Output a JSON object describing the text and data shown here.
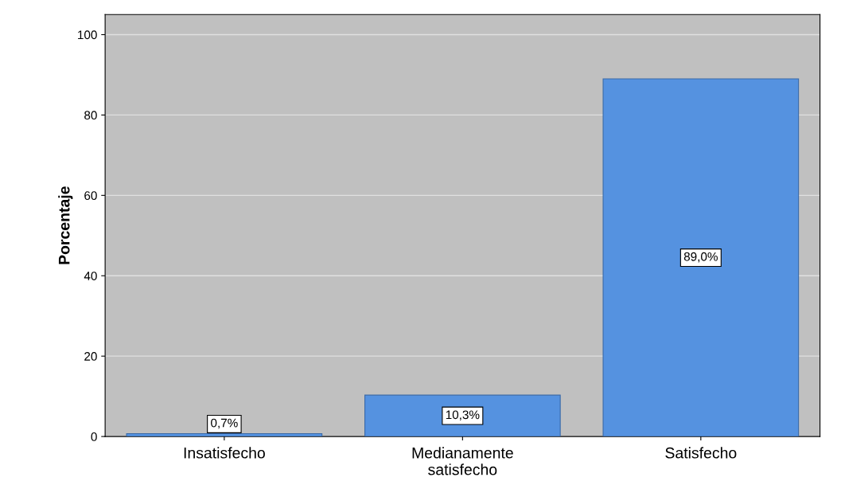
{
  "chart_data": {
    "type": "bar",
    "ylabel": "Porcentaje",
    "categories": [
      "Insatisfecho",
      "Medianamente\nsatisfecho",
      "Satisfecho"
    ],
    "values": [
      0.7,
      10.3,
      89.0
    ],
    "value_labels": [
      "0,7%",
      "10,3%",
      "89,0%"
    ],
    "color": "#5592e0",
    "ylim": [
      0,
      105
    ],
    "yticks": [
      0,
      20,
      40,
      60,
      80,
      100
    ],
    "grid": "y"
  }
}
